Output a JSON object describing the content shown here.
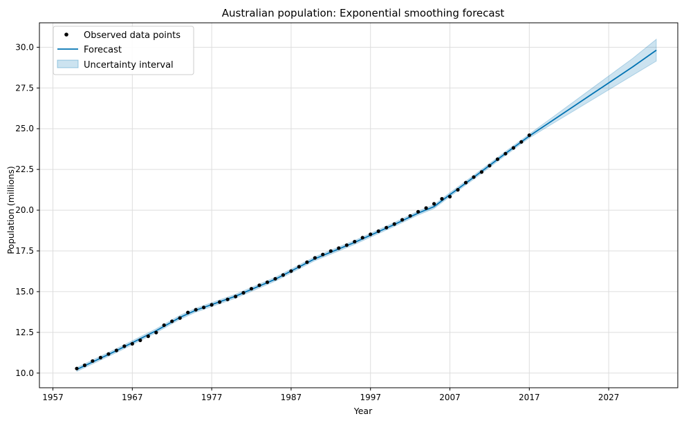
{
  "chart_data": {
    "type": "line",
    "title": "Australian population: Exponential smoothing forecast",
    "xlabel": "Year",
    "ylabel": "Population (millions)",
    "xlim": [
      1955.3,
      2035.7
    ],
    "ylim": [
      9.1,
      31.5
    ],
    "xticks": [
      1957,
      1967,
      1977,
      1987,
      1997,
      2007,
      2017,
      2027
    ],
    "yticks": [
      10.0,
      12.5,
      15.0,
      17.5,
      20.0,
      22.5,
      25.0,
      27.5,
      30.0
    ],
    "ytick_labels": [
      "10.0",
      "12.5",
      "15.0",
      "17.5",
      "20.0",
      "22.5",
      "25.0",
      "27.5",
      "30.0"
    ],
    "grid": true,
    "legend_position": "top-left",
    "legend": [
      "Observed data points",
      "Forecast",
      "Uncertainty interval"
    ],
    "colors": {
      "observed": "#000000",
      "forecast": "#0072B2",
      "interval": "#0072B2",
      "grid": "#dddddd"
    },
    "observed": {
      "name": "Observed data points",
      "x": [
        1960,
        1961,
        1962,
        1963,
        1964,
        1965,
        1966,
        1967,
        1968,
        1969,
        1970,
        1971,
        1972,
        1973,
        1974,
        1975,
        1976,
        1977,
        1978,
        1979,
        1980,
        1981,
        1982,
        1983,
        1984,
        1985,
        1986,
        1987,
        1988,
        1989,
        1990,
        1991,
        1992,
        1993,
        1994,
        1995,
        1996,
        1997,
        1998,
        1999,
        2000,
        2001,
        2002,
        2003,
        2004,
        2005,
        2006,
        2007,
        2008,
        2009,
        2010,
        2011,
        2012,
        2013,
        2014,
        2015,
        2016,
        2017
      ],
      "y": [
        10.28,
        10.48,
        10.74,
        10.95,
        11.17,
        11.39,
        11.65,
        11.8,
        12.01,
        12.26,
        12.49,
        12.94,
        13.18,
        13.38,
        13.72,
        13.89,
        14.03,
        14.19,
        14.36,
        14.52,
        14.7,
        14.93,
        15.18,
        15.39,
        15.58,
        15.79,
        16.02,
        16.26,
        16.53,
        16.81,
        17.07,
        17.28,
        17.49,
        17.67,
        17.85,
        18.07,
        18.31,
        18.52,
        18.71,
        18.93,
        19.15,
        19.41,
        19.65,
        19.9,
        20.13,
        20.39,
        20.7,
        20.83,
        21.25,
        21.69,
        22.03,
        22.34,
        22.73,
        23.13,
        23.47,
        23.82,
        24.19,
        24.6
      ]
    },
    "forecast": {
      "name": "Forecast",
      "x": [
        1960,
        1965,
        1970,
        1973,
        1975,
        1980,
        1985,
        1990,
        1995,
        2000,
        2003,
        2005,
        2007,
        2010,
        2014,
        2017,
        2020,
        2025,
        2030,
        2033
      ],
      "y": [
        10.22,
        11.38,
        12.6,
        13.42,
        13.86,
        14.72,
        15.76,
        17.02,
        18.02,
        19.12,
        19.82,
        20.22,
        20.95,
        22.02,
        23.48,
        24.55,
        25.53,
        27.16,
        28.79,
        29.82
      ]
    },
    "interval": {
      "name": "Uncertainty interval",
      "x": [
        1960,
        1965,
        1970,
        1973,
        1975,
        1980,
        1985,
        1990,
        1995,
        2000,
        2003,
        2005,
        2007,
        2010,
        2014,
        2017,
        2020,
        2025,
        2030,
        2033
      ],
      "lower": [
        10.1,
        11.26,
        12.48,
        13.3,
        13.74,
        14.6,
        15.64,
        16.9,
        17.9,
        19.0,
        19.7,
        20.1,
        20.83,
        21.9,
        23.36,
        24.43,
        25.33,
        26.8,
        28.27,
        29.15
      ],
      "upper": [
        10.34,
        11.5,
        12.72,
        13.54,
        13.98,
        14.84,
        15.88,
        17.14,
        18.14,
        19.24,
        19.94,
        20.34,
        21.07,
        22.14,
        23.6,
        24.67,
        25.73,
        27.52,
        29.31,
        30.49
      ]
    }
  }
}
